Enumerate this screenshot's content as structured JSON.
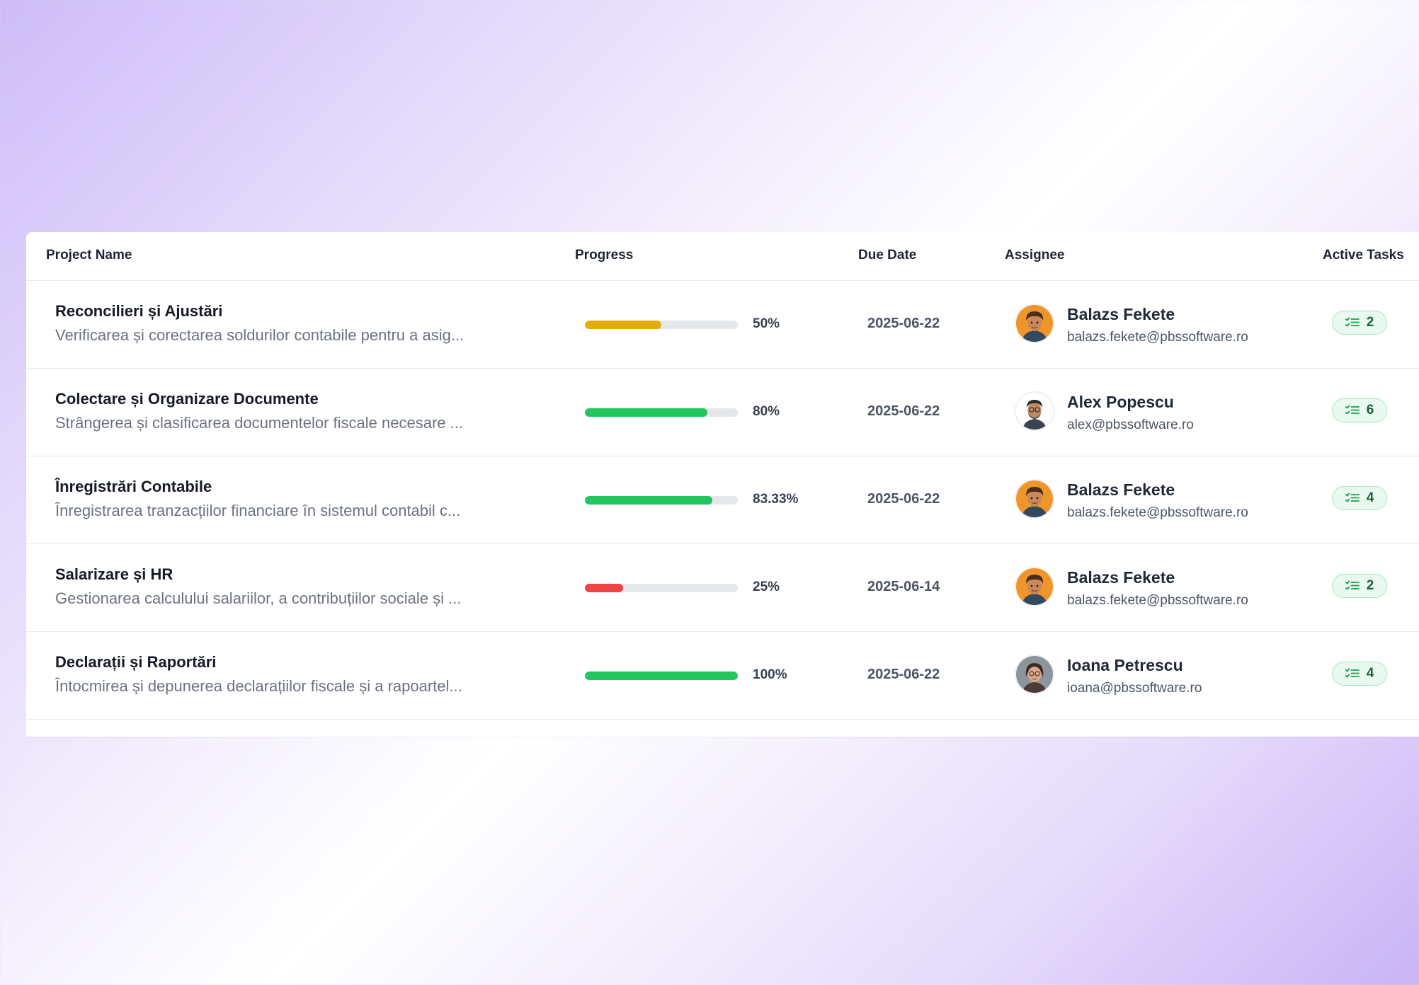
{
  "table": {
    "headers": {
      "project_name": "Project Name",
      "progress": "Progress",
      "due_date": "Due Date",
      "assignee": "Assignee",
      "active_tasks": "Active Tasks"
    },
    "rows": [
      {
        "title": "Reconcilieri și Ajustări",
        "description": "Verificarea și corectarea soldurilor contabile pentru a asig...",
        "progress": 0.5,
        "progress_label": "50%",
        "progress_color": "#e5ad0a",
        "due_date": "2025-06-22",
        "assignee_name": "Balazs Fekete",
        "assignee_email": "balazs.fekete@pbssoftware.ro",
        "avatar": "avatar-balazs",
        "active_tasks": "2"
      },
      {
        "title": "Colectare și Organizare Documente",
        "description": "Strângerea și clasificarea documentelor fiscale necesare ...",
        "progress": 0.8,
        "progress_label": "80%",
        "progress_color": "#22c55e",
        "due_date": "2025-06-22",
        "assignee_name": "Alex Popescu",
        "assignee_email": "alex@pbssoftware.ro",
        "avatar": "avatar-alex",
        "active_tasks": "6"
      },
      {
        "title": "Înregistrări Contabile",
        "description": "Înregistrarea tranzacțiilor financiare în sistemul contabil c...",
        "progress": 0.8333,
        "progress_label": "83.33%",
        "progress_color": "#22c55e",
        "due_date": "2025-06-22",
        "assignee_name": "Balazs Fekete",
        "assignee_email": "balazs.fekete@pbssoftware.ro",
        "avatar": "avatar-balazs",
        "active_tasks": "4"
      },
      {
        "title": "Salarizare și HR",
        "description": "Gestionarea calculului salariilor, a contribuțiilor sociale și ...",
        "progress": 0.25,
        "progress_label": "25%",
        "progress_color": "#ef4444",
        "due_date": "2025-06-14",
        "assignee_name": "Balazs Fekete",
        "assignee_email": "balazs.fekete@pbssoftware.ro",
        "avatar": "avatar-balazs",
        "active_tasks": "2"
      },
      {
        "title": "Declarații și Raportări",
        "description": "Întocmirea și depunerea declarațiilor fiscale și a rapoartel...",
        "progress": 1.0,
        "progress_label": "100%",
        "progress_color": "#22c55e",
        "due_date": "2025-06-22",
        "assignee_name": "Ioana Petrescu",
        "assignee_email": "ioana@pbssoftware.ro",
        "avatar": "avatar-ioana",
        "active_tasks": "4"
      }
    ]
  },
  "icons": {
    "task_badge": "checklist-icon"
  }
}
